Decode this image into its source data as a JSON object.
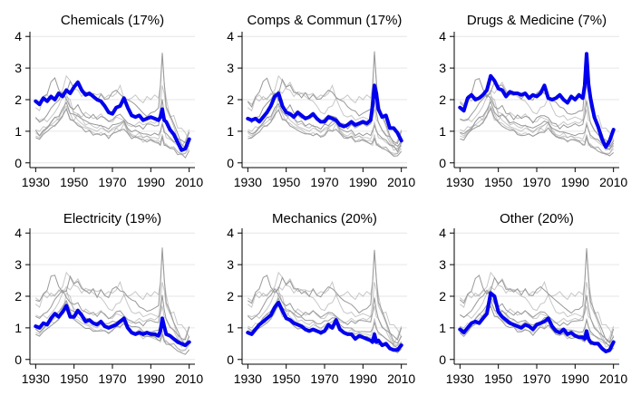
{
  "chart_data": {
    "type": "line",
    "layout": "small-multiples 2x3",
    "x_ticks": [
      1930,
      1950,
      1970,
      1990,
      2010
    ],
    "y_ticks": [
      0,
      1,
      2,
      3,
      4
    ],
    "xlim": [
      1927,
      2013
    ],
    "ylim": [
      -0.15,
      4.15
    ],
    "grid": "horizontal",
    "highlight_color": "#0000ee",
    "background_color": "#999999",
    "years": [
      1930,
      1932,
      1934,
      1936,
      1938,
      1940,
      1942,
      1944,
      1946,
      1948,
      1950,
      1952,
      1954,
      1956,
      1958,
      1960,
      1962,
      1964,
      1966,
      1968,
      1970,
      1972,
      1974,
      1976,
      1978,
      1980,
      1982,
      1984,
      1986,
      1988,
      1990,
      1992,
      1994,
      1995,
      1996,
      1997,
      1998,
      2000,
      2002,
      2004,
      2006,
      2008,
      2010
    ],
    "panels": [
      {
        "title": "Chemicals (17%)",
        "values": [
          1.95,
          1.85,
          2.05,
          1.95,
          2.1,
          2.0,
          2.2,
          2.1,
          2.3,
          2.2,
          2.4,
          2.55,
          2.3,
          2.15,
          2.2,
          2.1,
          2.0,
          1.95,
          1.8,
          1.6,
          1.55,
          1.75,
          1.8,
          2.05,
          1.75,
          1.5,
          1.45,
          1.5,
          1.35,
          1.4,
          1.45,
          1.4,
          1.35,
          1.45,
          1.7,
          1.35,
          1.3,
          1.05,
          0.9,
          0.65,
          0.4,
          0.45,
          0.75
        ]
      },
      {
        "title": "Comps & Commun (17%)",
        "values": [
          1.4,
          1.35,
          1.4,
          1.3,
          1.45,
          1.6,
          1.8,
          2.1,
          2.2,
          1.8,
          1.6,
          1.55,
          1.45,
          1.6,
          1.5,
          1.4,
          1.45,
          1.55,
          1.4,
          1.3,
          1.3,
          1.45,
          1.4,
          1.35,
          1.2,
          1.15,
          1.2,
          1.3,
          1.2,
          1.25,
          1.3,
          1.25,
          1.35,
          1.8,
          2.45,
          2.2,
          1.7,
          1.45,
          1.5,
          1.1,
          1.1,
          0.95,
          0.7
        ]
      },
      {
        "title": "Drugs & Medicine (7%)",
        "values": [
          1.75,
          1.65,
          2.05,
          2.15,
          2.0,
          2.05,
          2.15,
          2.3,
          2.75,
          2.6,
          2.35,
          2.3,
          2.1,
          2.25,
          2.2,
          2.2,
          2.15,
          2.2,
          2.05,
          2.15,
          2.1,
          2.2,
          2.45,
          2.05,
          2.0,
          2.05,
          2.15,
          2.0,
          1.9,
          2.1,
          2.0,
          2.15,
          2.05,
          2.45,
          3.45,
          2.5,
          2.05,
          1.45,
          1.15,
          0.75,
          0.5,
          0.7,
          1.05
        ]
      },
      {
        "title": "Electricity (19%)",
        "values": [
          1.05,
          1.0,
          1.15,
          1.1,
          1.3,
          1.45,
          1.35,
          1.5,
          1.7,
          1.35,
          1.35,
          1.55,
          1.4,
          1.2,
          1.25,
          1.15,
          1.1,
          1.2,
          1.05,
          1.0,
          1.05,
          1.1,
          1.2,
          1.3,
          1.0,
          0.85,
          0.8,
          0.85,
          0.8,
          0.85,
          0.8,
          0.8,
          0.75,
          0.9,
          1.3,
          1.05,
          0.8,
          0.75,
          0.65,
          0.55,
          0.5,
          0.45,
          0.55
        ]
      },
      {
        "title": "Mechanics (20%)",
        "values": [
          0.85,
          0.8,
          0.95,
          1.1,
          1.2,
          1.3,
          1.4,
          1.65,
          1.8,
          1.55,
          1.3,
          1.25,
          1.15,
          1.1,
          1.05,
          0.95,
          0.9,
          0.95,
          0.9,
          0.85,
          0.9,
          1.1,
          1.0,
          1.25,
          0.95,
          0.85,
          0.8,
          0.8,
          0.65,
          0.75,
          0.7,
          0.65,
          0.6,
          0.55,
          0.8,
          0.55,
          0.6,
          0.45,
          0.5,
          0.35,
          0.3,
          0.3,
          0.45
        ]
      },
      {
        "title": "Other (20%)",
        "values": [
          0.95,
          0.85,
          1.0,
          1.15,
          1.2,
          1.15,
          1.3,
          1.45,
          2.1,
          2.0,
          1.5,
          1.35,
          1.25,
          1.15,
          1.1,
          1.05,
          1.0,
          1.1,
          1.05,
          0.95,
          1.1,
          1.15,
          1.2,
          1.3,
          1.05,
          0.9,
          0.85,
          0.95,
          0.8,
          0.85,
          0.75,
          0.7,
          0.7,
          0.65,
          0.9,
          0.65,
          0.55,
          0.5,
          0.5,
          0.35,
          0.25,
          0.3,
          0.55
        ]
      }
    ],
    "background_lines": {
      "thin_peaked_upper": [
        1.9,
        1.8,
        2.1,
        2.2,
        2.6,
        2.7,
        2.3,
        2.1,
        2.2,
        2.6,
        2.4,
        2.5,
        2.2,
        2.2,
        2.1,
        2.2,
        2.0,
        2.2,
        2.0,
        2.0,
        2.2,
        2.3,
        2.2,
        2.1,
        2.0,
        1.9,
        1.8,
        1.7,
        1.6,
        1.5,
        1.6,
        1.6,
        1.7,
        2.4,
        3.5,
        2.6,
        1.8,
        1.5,
        1.2,
        0.9,
        0.6,
        0.5,
        0.7
      ],
      "thin_peaked_lower": [
        1.4,
        1.3,
        1.4,
        1.5,
        1.7,
        1.9,
        2.0,
        2.2,
        2.0,
        1.8,
        1.7,
        1.8,
        1.6,
        1.5,
        1.4,
        1.5,
        1.4,
        1.5,
        1.4,
        1.3,
        1.4,
        1.5,
        1.5,
        1.4,
        1.3,
        1.2,
        1.1,
        1.2,
        1.1,
        1.2,
        1.2,
        1.2,
        1.2,
        1.5,
        2.0,
        1.6,
        1.3,
        1.0,
        0.9,
        0.8,
        0.7,
        0.6,
        1.0
      ],
      "thin_mid": [
        1.0,
        0.9,
        1.0,
        1.1,
        1.3,
        1.4,
        1.5,
        1.7,
        1.9,
        1.6,
        1.5,
        1.5,
        1.4,
        1.3,
        1.3,
        1.2,
        1.2,
        1.2,
        1.1,
        1.1,
        1.2,
        1.2,
        1.3,
        1.3,
        1.1,
        1.0,
        1.0,
        1.0,
        0.9,
        0.9,
        0.9,
        0.9,
        0.9,
        1.0,
        1.2,
        1.0,
        0.9,
        0.8,
        0.7,
        0.6,
        0.5,
        0.4,
        0.6
      ],
      "thin_low": [
        0.8,
        0.75,
        0.9,
        1.0,
        1.1,
        1.2,
        1.3,
        1.5,
        1.7,
        1.4,
        1.3,
        1.2,
        1.1,
        1.0,
        1.0,
        0.9,
        0.9,
        0.9,
        0.9,
        0.8,
        0.9,
        1.0,
        1.0,
        1.1,
        0.9,
        0.8,
        0.8,
        0.8,
        0.7,
        0.7,
        0.7,
        0.7,
        0.6,
        0.6,
        0.8,
        0.6,
        0.5,
        0.5,
        0.4,
        0.3,
        0.25,
        0.2,
        0.35
      ]
    }
  }
}
